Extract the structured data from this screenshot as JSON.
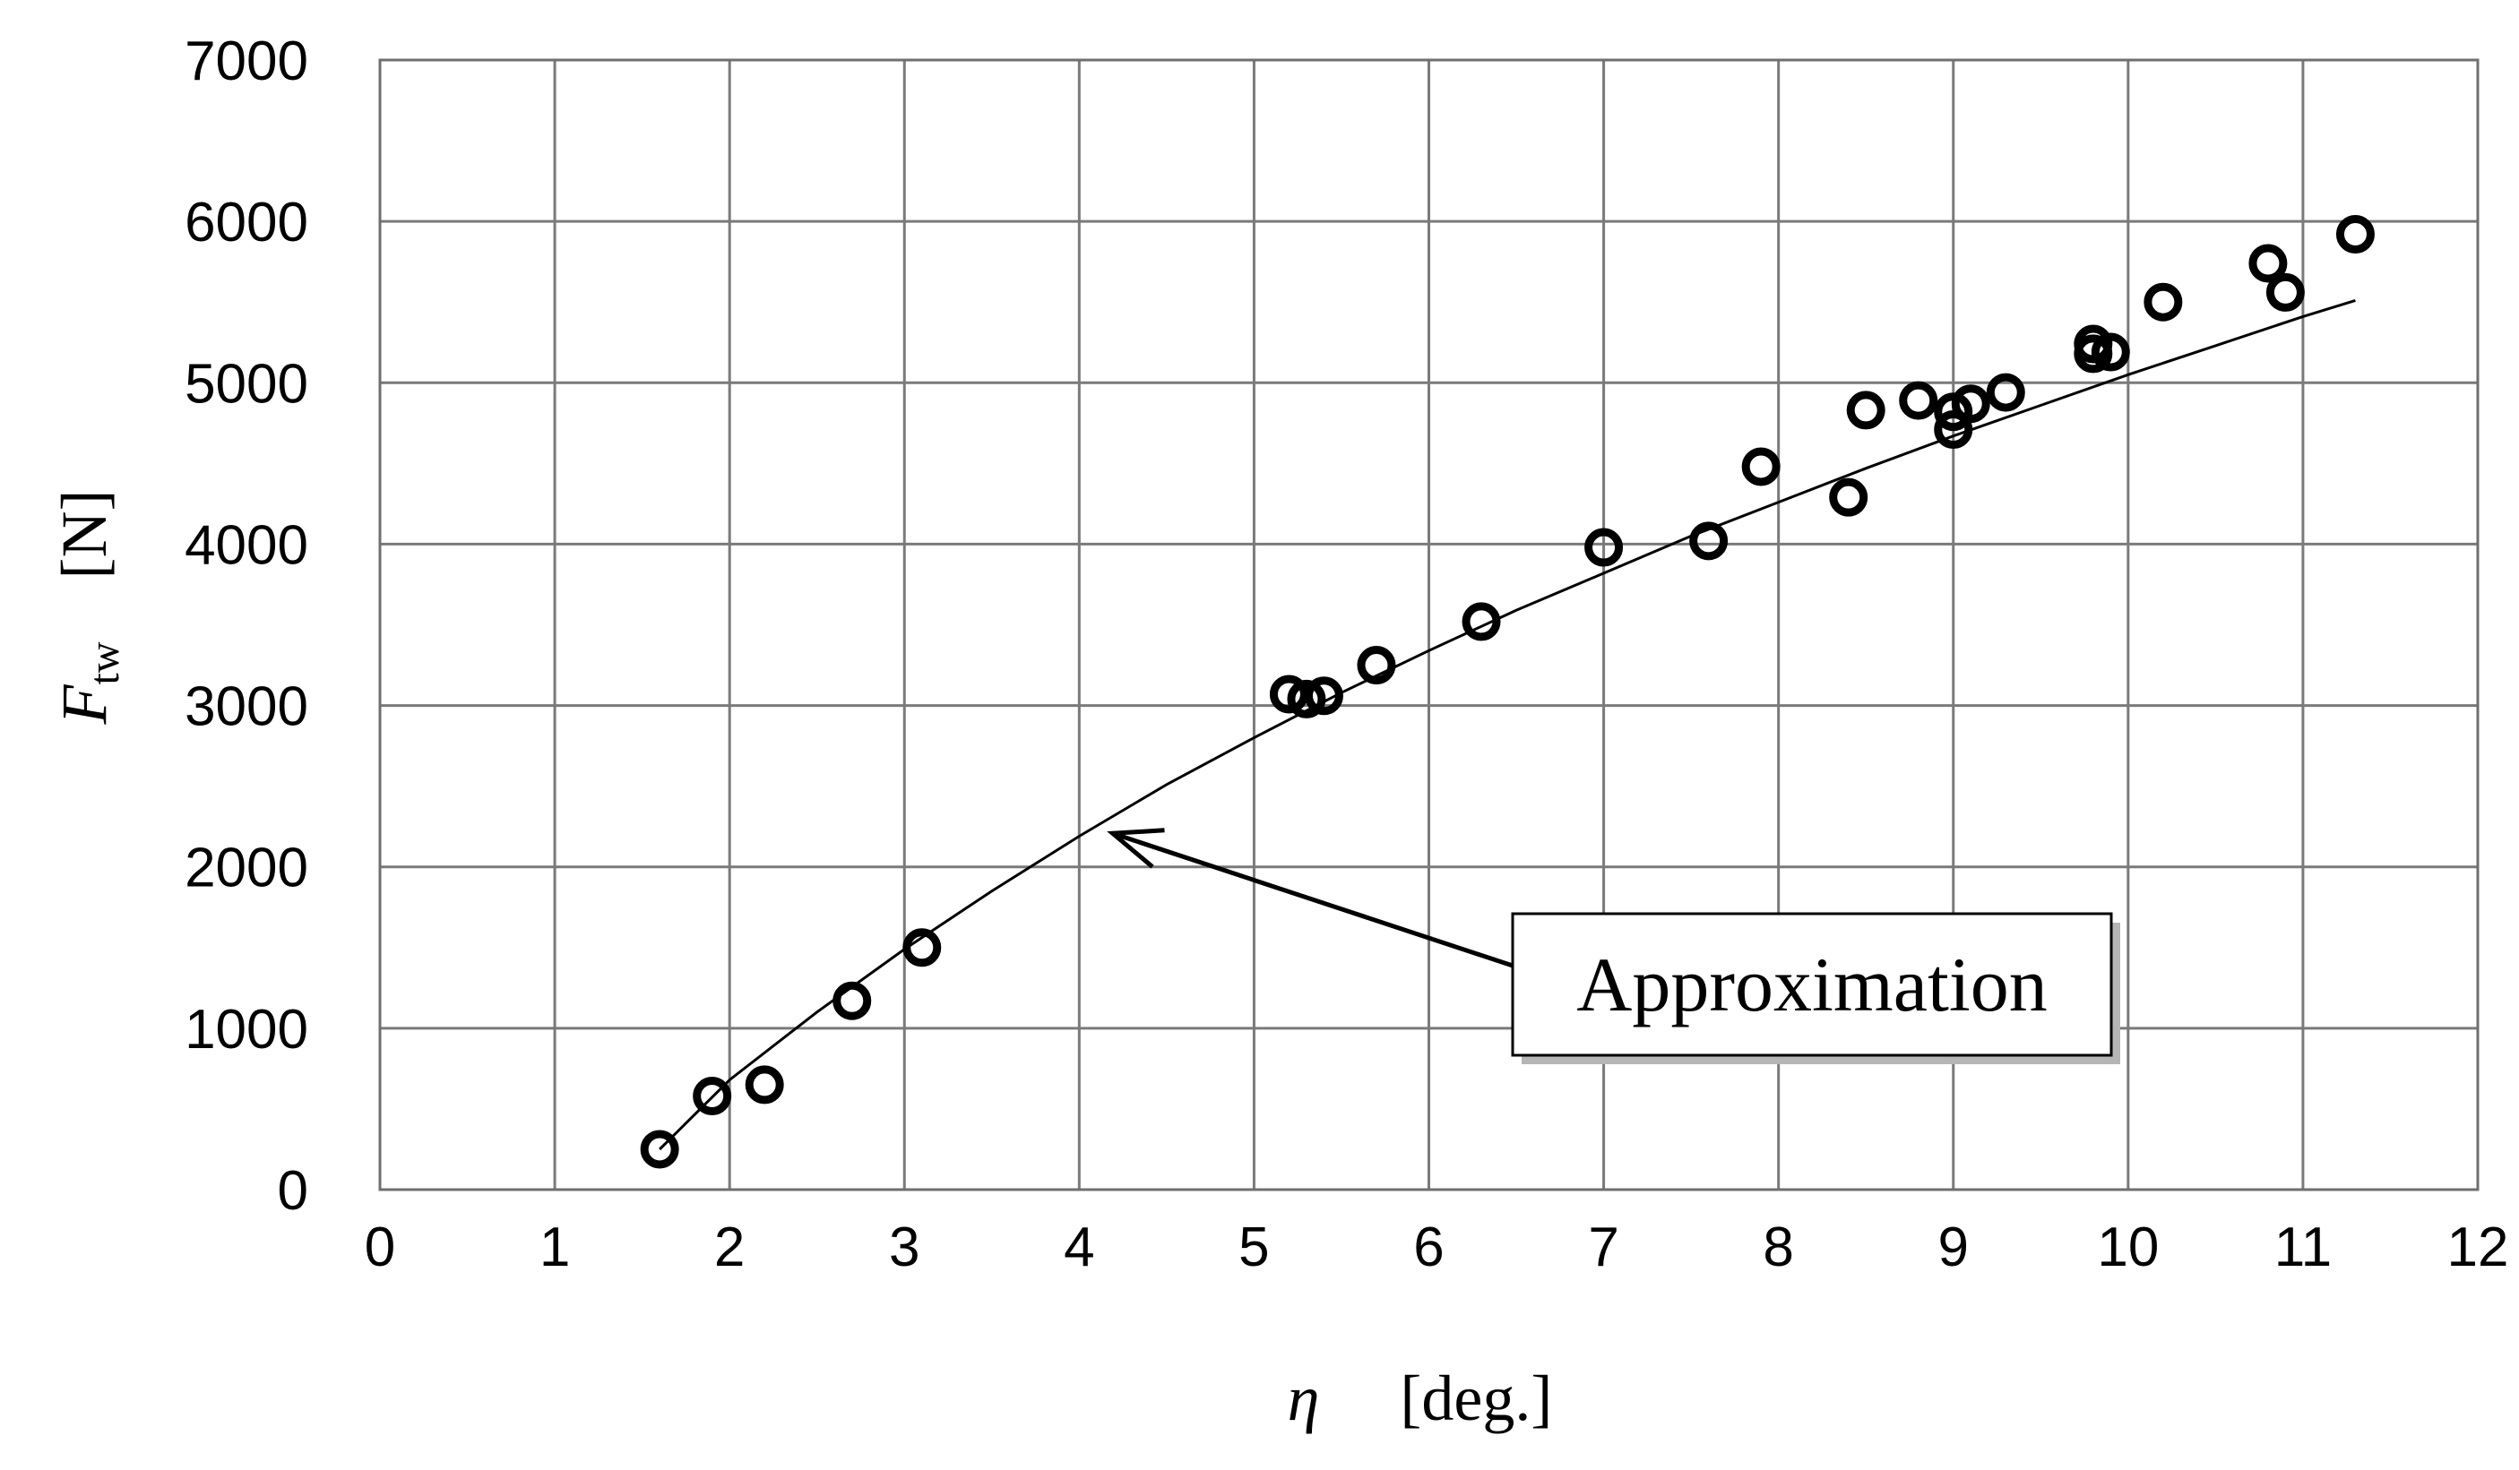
{
  "chart_data": {
    "type": "scatter",
    "title": "",
    "xlabel": {
      "symbol": "η",
      "unit": "[deg.]"
    },
    "ylabel": {
      "symbol": "F",
      "subscript": "tw",
      "unit": "[N]"
    },
    "xlim": [
      0,
      12
    ],
    "ylim": [
      0,
      7000
    ],
    "xticks": [
      "0",
      "1",
      "2",
      "3",
      "4",
      "5",
      "6",
      "7",
      "8",
      "9",
      "10",
      "11",
      "12"
    ],
    "yticks": [
      "0",
      "1000",
      "2000",
      "3000",
      "4000",
      "5000",
      "6000",
      "7000"
    ],
    "grid": true,
    "series": [
      {
        "marker": "open-circle",
        "points": [
          [
            1.6,
            250
          ],
          [
            1.9,
            580
          ],
          [
            2.2,
            650
          ],
          [
            2.7,
            1170
          ],
          [
            3.1,
            1500
          ],
          [
            5.2,
            3070
          ],
          [
            5.3,
            3040
          ],
          [
            5.4,
            3060
          ],
          [
            5.7,
            3250
          ],
          [
            6.3,
            3520
          ],
          [
            7.0,
            3980
          ],
          [
            7.6,
            4020
          ],
          [
            7.9,
            4480
          ],
          [
            8.4,
            4290
          ],
          [
            8.5,
            4830
          ],
          [
            8.8,
            4890
          ],
          [
            9.0,
            4710
          ],
          [
            9.0,
            4820
          ],
          [
            9.1,
            4870
          ],
          [
            9.3,
            4940
          ],
          [
            9.8,
            5240
          ],
          [
            9.8,
            5180
          ],
          [
            9.9,
            5190
          ],
          [
            10.2,
            5500
          ],
          [
            10.8,
            5740
          ],
          [
            10.9,
            5560
          ],
          [
            11.3,
            5920
          ]
        ]
      },
      {
        "marker": "line",
        "points": [
          [
            1.6,
            250
          ],
          [
            2.0,
            680
          ],
          [
            2.5,
            1100
          ],
          [
            3.0,
            1490
          ],
          [
            3.5,
            1850
          ],
          [
            4.0,
            2190
          ],
          [
            4.5,
            2510
          ],
          [
            5.0,
            2800
          ],
          [
            5.5,
            3080
          ],
          [
            6.0,
            3340
          ],
          [
            6.5,
            3590
          ],
          [
            7.0,
            3820
          ],
          [
            7.5,
            4050
          ],
          [
            8.0,
            4260
          ],
          [
            8.5,
            4470
          ],
          [
            9.0,
            4670
          ],
          [
            9.5,
            4860
          ],
          [
            10.0,
            5050
          ],
          [
            10.5,
            5230
          ],
          [
            11.0,
            5410
          ],
          [
            11.3,
            5510
          ]
        ]
      }
    ],
    "annotations": [
      {
        "text": "Approximation",
        "arrow_to": [
          4.15,
          2230
        ]
      }
    ]
  }
}
